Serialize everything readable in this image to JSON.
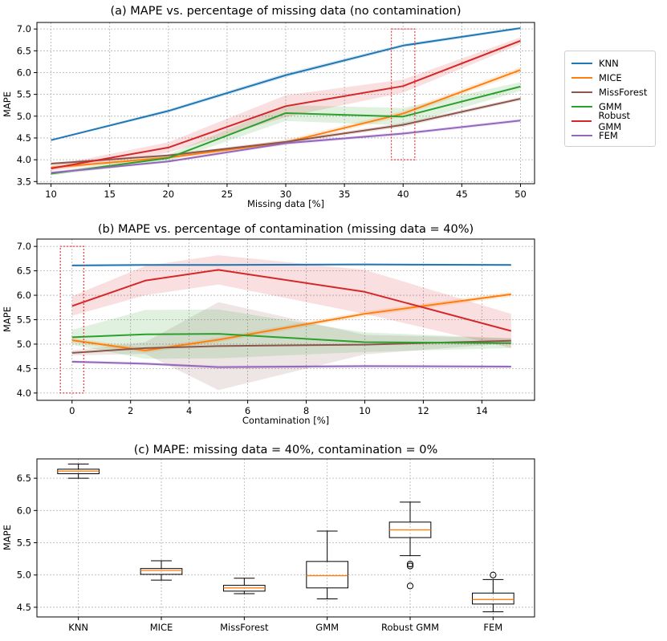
{
  "colors": {
    "KNN": "#1f77b4",
    "MICE": "#ff7f0e",
    "MissForest": "#8c564b",
    "GMM": "#2ca02c",
    "Robust GMM": "#d62728",
    "FEM": "#9467bd",
    "median": "#ff7f0e",
    "highlight": "#e8393a"
  },
  "legend": {
    "items": [
      "KNN",
      "MICE",
      "MissForest",
      "GMM",
      "Robust GMM",
      "FEM"
    ],
    "placement": "right"
  },
  "chart_data": [
    {
      "type": "line",
      "title": "(a) MAPE vs. percentage of missing data (no contamination)",
      "xlabel": "Missing data [%]",
      "ylabel": "MAPE",
      "x": [
        10,
        20,
        30,
        40,
        50
      ],
      "xlim": [
        8.8,
        51.2
      ],
      "ylim": [
        3.45,
        7.15
      ],
      "xticks": [
        10,
        15,
        20,
        25,
        30,
        35,
        40,
        45,
        50
      ],
      "yticks": [
        3.5,
        4.0,
        4.5,
        5.0,
        5.5,
        6.0,
        6.5,
        7.0
      ],
      "tick_decimals": {
        "x": 0,
        "y": 1
      },
      "grid": true,
      "highlight_box": {
        "x": [
          39,
          41
        ],
        "y": [
          4.0,
          7.0
        ]
      },
      "series": [
        {
          "name": "KNN",
          "values": [
            4.45,
            5.12,
            5.94,
            6.62,
            7.02
          ],
          "band": [
            0.02,
            0.04,
            0.05,
            0.04,
            0.03
          ]
        },
        {
          "name": "MICE",
          "values": [
            3.82,
            4.05,
            4.4,
            5.06,
            6.06
          ],
          "band": [
            0.04,
            0.04,
            0.06,
            0.06,
            0.07
          ]
        },
        {
          "name": "MissForest",
          "values": [
            3.91,
            4.1,
            4.41,
            4.8,
            5.4
          ],
          "band": [
            0.03,
            0.03,
            0.04,
            0.05,
            0.04
          ]
        },
        {
          "name": "GMM",
          "values": [
            3.68,
            4.04,
            5.07,
            4.99,
            5.68
          ],
          "band": [
            0.04,
            0.08,
            0.18,
            0.2,
            0.1
          ]
        },
        {
          "name": "Robust GMM",
          "values": [
            3.8,
            4.28,
            5.23,
            5.69,
            6.73
          ],
          "band": [
            0.06,
            0.12,
            0.25,
            0.15,
            0.08
          ]
        },
        {
          "name": "FEM",
          "values": [
            3.7,
            3.96,
            4.38,
            4.6,
            4.9
          ],
          "band": [
            0.03,
            0.03,
            0.04,
            0.04,
            0.04
          ]
        }
      ]
    },
    {
      "type": "line",
      "title": "(b) MAPE vs. percentage of contamination (missing data = 40%)",
      "xlabel": "Contamination [%]",
      "ylabel": "MAPE",
      "x": [
        0,
        2.5,
        5,
        10,
        15
      ],
      "xlim": [
        -1.2,
        15.8
      ],
      "ylim": [
        3.85,
        7.15
      ],
      "xticks": [
        0,
        2,
        4,
        6,
        8,
        10,
        12,
        14
      ],
      "yticks": [
        4.0,
        4.5,
        5.0,
        5.5,
        6.0,
        6.5,
        7.0
      ],
      "tick_decimals": {
        "x": 0,
        "y": 1
      },
      "grid": true,
      "highlight_box": {
        "x": [
          -0.4,
          0.4
        ],
        "y": [
          4.0,
          7.0
        ]
      },
      "series": [
        {
          "name": "KNN",
          "values": [
            6.61,
            6.62,
            6.62,
            6.63,
            6.62
          ],
          "band": [
            0.02,
            0.02,
            0.02,
            0.02,
            0.02
          ]
        },
        {
          "name": "MICE",
          "values": [
            5.08,
            4.87,
            5.09,
            5.62,
            6.02
          ],
          "band": [
            0.05,
            0.05,
            0.05,
            0.05,
            0.05
          ]
        },
        {
          "name": "MissForest",
          "values": [
            4.82,
            4.92,
            4.96,
            4.99,
            5.07
          ],
          "band": [
            0.05,
            0.12,
            0.9,
            0.2,
            0.05
          ]
        },
        {
          "name": "GMM",
          "values": [
            5.14,
            5.2,
            5.21,
            5.04,
            5.02
          ],
          "band": [
            0.15,
            0.5,
            0.5,
            0.2,
            0.1
          ]
        },
        {
          "name": "Robust GMM",
          "values": [
            5.78,
            6.3,
            6.52,
            6.07,
            5.27
          ],
          "band": [
            0.2,
            0.3,
            0.3,
            0.45,
            0.35
          ]
        },
        {
          "name": "FEM",
          "values": [
            4.64,
            4.6,
            4.53,
            4.55,
            4.54
          ],
          "band": [
            0.03,
            0.03,
            0.03,
            0.03,
            0.03
          ]
        }
      ]
    },
    {
      "type": "box",
      "title": "(c) MAPE: missing data = 40%, contamination = 0%",
      "xlabel": "",
      "ylabel": "MAPE",
      "categories": [
        "KNN",
        "MICE",
        "MissForest",
        "GMM",
        "Robust GMM",
        "FEM"
      ],
      "ylim": [
        4.35,
        6.8
      ],
      "yticks": [
        4.5,
        5.0,
        5.5,
        6.0,
        6.5
      ],
      "tick_decimals": {
        "y": 1
      },
      "grid": true,
      "boxes": [
        {
          "name": "KNN",
          "whisker_low": 6.5,
          "q1": 6.57,
          "median": 6.61,
          "q3": 6.64,
          "whisker_high": 6.72,
          "outliers": []
        },
        {
          "name": "MICE",
          "whisker_low": 4.92,
          "q1": 5.01,
          "median": 5.07,
          "q3": 5.1,
          "whisker_high": 5.22,
          "outliers": []
        },
        {
          "name": "MissForest",
          "whisker_low": 4.71,
          "q1": 4.75,
          "median": 4.8,
          "q3": 4.84,
          "whisker_high": 4.95,
          "outliers": []
        },
        {
          "name": "GMM",
          "whisker_low": 4.63,
          "q1": 4.8,
          "median": 4.99,
          "q3": 5.21,
          "whisker_high": 5.68,
          "outliers": []
        },
        {
          "name": "Robust GMM",
          "whisker_low": 5.3,
          "q1": 5.58,
          "median": 5.7,
          "q3": 5.82,
          "whisker_high": 6.13,
          "outliers": [
            5.17,
            5.14,
            4.83
          ]
        },
        {
          "name": "FEM",
          "whisker_low": 4.43,
          "q1": 4.55,
          "median": 4.62,
          "q3": 4.72,
          "whisker_high": 4.93,
          "outliers": [
            5.0
          ]
        }
      ]
    }
  ]
}
